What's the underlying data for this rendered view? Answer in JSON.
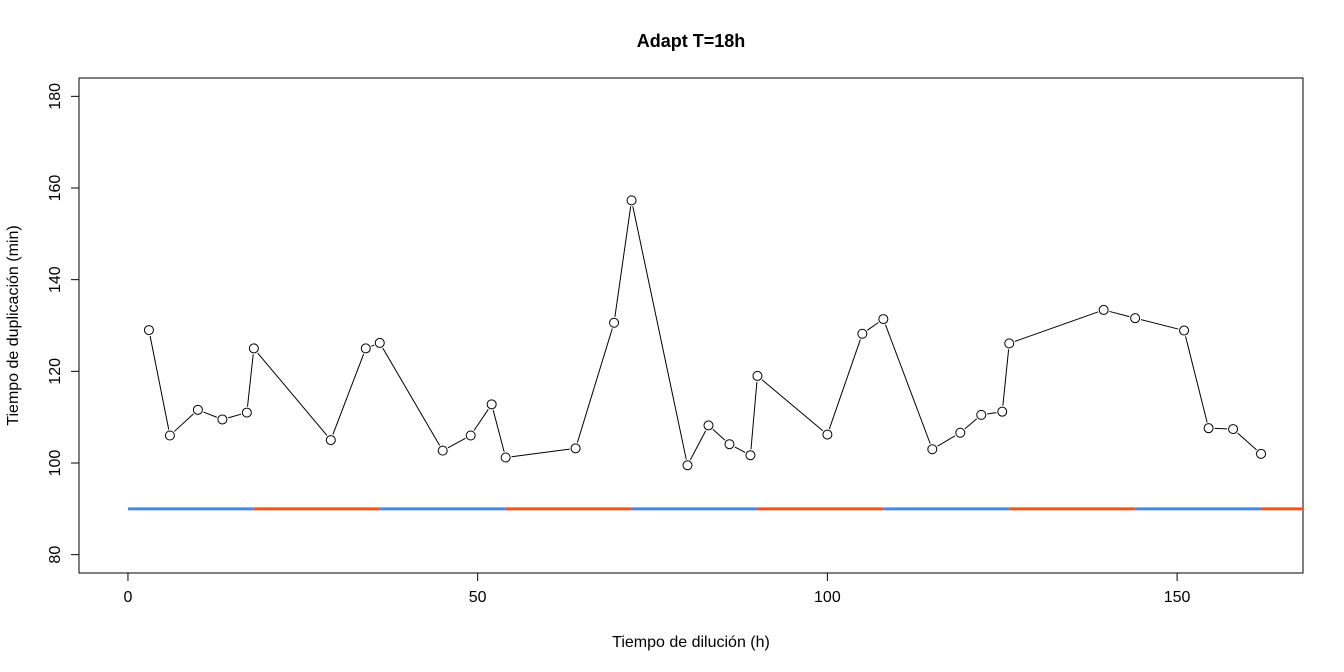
{
  "chart_data": {
    "type": "line",
    "title": "Adapt T=18h",
    "xlabel": "Tiempo de dilución (h)",
    "ylabel": "Tiempo de duplicación (min)",
    "xlim": [
      -7,
      168
    ],
    "ylim": [
      76,
      184
    ],
    "xticks": [
      0,
      50,
      100,
      150
    ],
    "yticks": [
      80,
      100,
      120,
      140,
      160,
      180
    ],
    "grid": false,
    "series": [
      {
        "type": "line+points",
        "color": "#000000",
        "x": [
          3,
          6,
          10,
          13.5,
          17,
          18,
          29,
          34,
          36,
          45,
          49,
          52,
          54,
          64,
          69.5,
          72,
          80,
          83,
          86,
          89,
          90,
          100,
          105,
          108,
          115,
          119,
          122,
          125,
          126,
          139.5,
          144,
          151,
          154.5,
          158,
          162
        ],
        "y": [
          129,
          106,
          111.6,
          109.5,
          111,
          125,
          105,
          125,
          126.2,
          102.7,
          106,
          112.8,
          101.2,
          103.2,
          130.6,
          157.3,
          99.5,
          108.2,
          104.1,
          101.7,
          119,
          106.2,
          128.2,
          131.4,
          103,
          106.6,
          110.5,
          111.2,
          126.1,
          133.4,
          131.6,
          128.9,
          107.6,
          107.4,
          102
        ]
      }
    ],
    "segments": {
      "y": 90,
      "colors": {
        "blue": "#4a86e8",
        "orange": "#f4511e"
      },
      "x_start": 0,
      "x_end": 168,
      "period": 18,
      "sequence": [
        "blue",
        "orange",
        "blue",
        "orange",
        "blue",
        "orange",
        "blue",
        "orange",
        "blue",
        "orange"
      ]
    }
  }
}
